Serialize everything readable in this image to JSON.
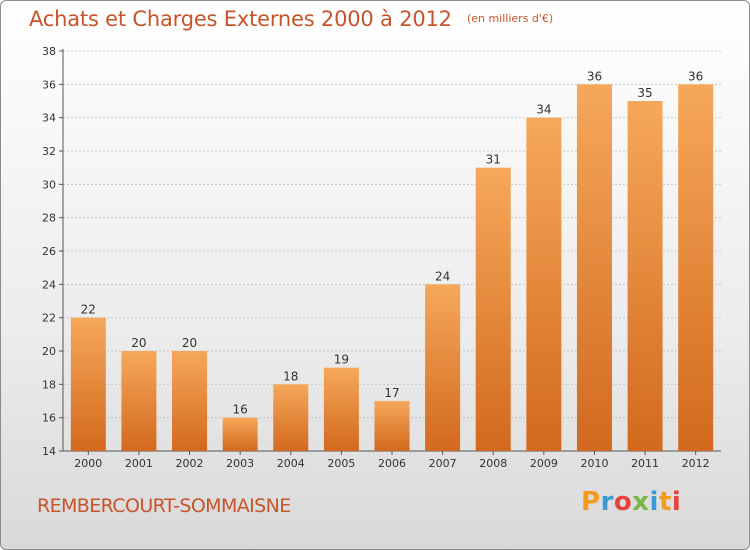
{
  "header": {
    "title": "Achats et Charges Externes 2000 à 2012",
    "unit": "(en milliers d'€)"
  },
  "footer": {
    "commune": "REMBERCOURT-SOMMAISNE",
    "logo": "Proxiti",
    "logo_colors": [
      "#f39a1f",
      "#3b9ad6",
      "#e8423c",
      "#7ab648",
      "#3b9ad6",
      "#f39a1f",
      "#e8423c"
    ]
  },
  "colors": {
    "bar_light": "#f6a85a",
    "bar_dark": "#d2691e",
    "text_accent": "#c8542c"
  },
  "chart_data": {
    "type": "bar",
    "categories": [
      "2000",
      "2001",
      "2002",
      "2003",
      "2004",
      "2005",
      "2006",
      "2007",
      "2008",
      "2009",
      "2010",
      "2011",
      "2012"
    ],
    "values": [
      22,
      20,
      20,
      16,
      18,
      19,
      17,
      24,
      31,
      34,
      36,
      35,
      36
    ],
    "ylim": [
      14,
      38
    ],
    "yticks": [
      14,
      16,
      18,
      20,
      22,
      24,
      26,
      28,
      30,
      32,
      34,
      36,
      38
    ],
    "grid": true,
    "legend": "none"
  }
}
